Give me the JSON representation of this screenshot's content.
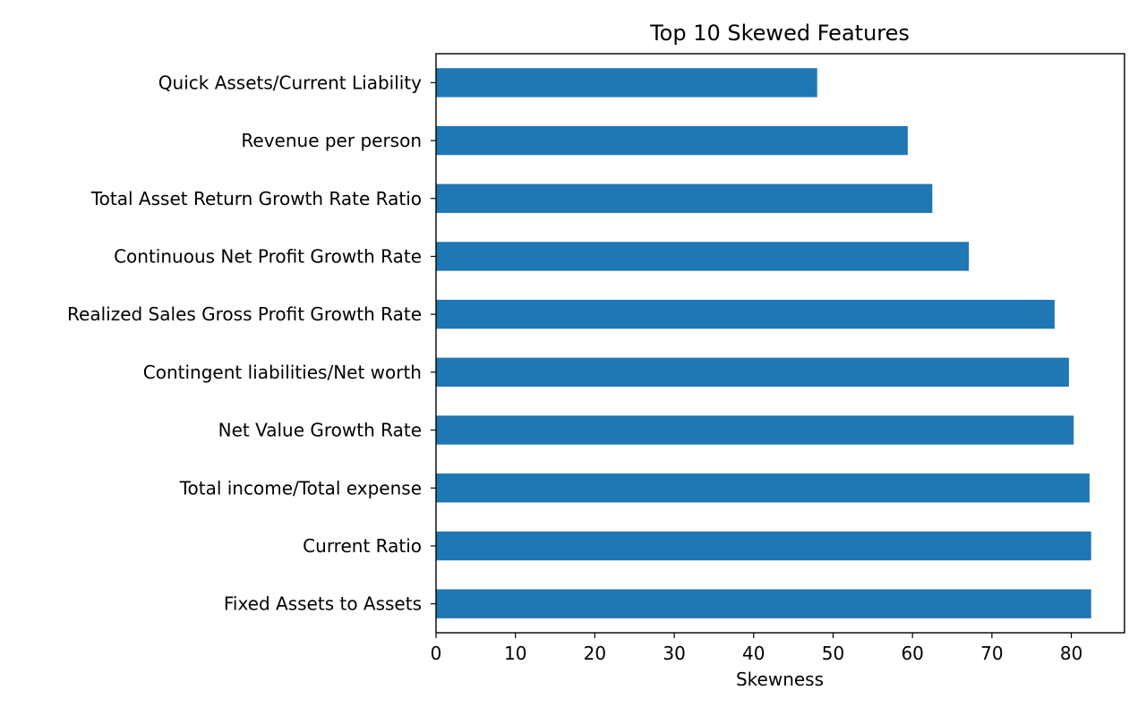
{
  "chart_data": {
    "type": "bar",
    "orientation": "horizontal",
    "title": "Top 10 Skewed Features",
    "xlabel": "Skewness",
    "ylabel": "",
    "xlim": [
      0,
      86.7
    ],
    "xticks": [
      0,
      10,
      20,
      30,
      40,
      50,
      60,
      70,
      80
    ],
    "grid": false,
    "categories": [
      "Quick Assets/Current Liability",
      "Revenue per person",
      "Total Asset Return Growth Rate Ratio",
      "Continuous Net Profit Growth Rate",
      "Realized Sales Gross Profit Growth Rate",
      "Contingent liabilities/Net worth",
      "Net Value Growth Rate",
      "Total income/Total expense",
      "Current Ratio",
      "Fixed Assets to Assets"
    ],
    "values": [
      48.0,
      59.4,
      62.5,
      67.1,
      77.9,
      79.7,
      80.3,
      82.3,
      82.5,
      82.5
    ],
    "colors": {
      "bar": "#1f77b4",
      "axes": "#000000",
      "background": "#ffffff"
    }
  }
}
